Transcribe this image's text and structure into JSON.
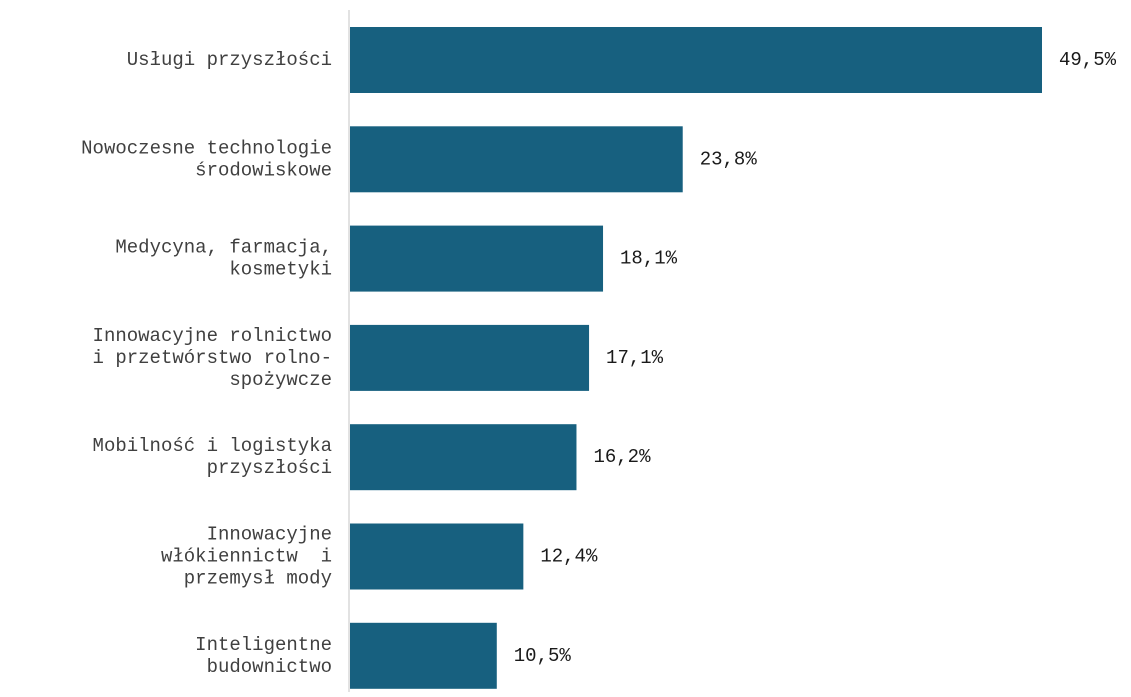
{
  "chart_data": {
    "type": "bar",
    "orientation": "horizontal",
    "categories": [
      "Usługi przyszłości",
      "Nowoczesne technologie środowiskowe",
      "Medycyna, farmacja, kosmetyki",
      "Innowacyjne rolnictwo i przetwórstwo rolno-spożywcze",
      "Mobilność i logistyka przyszłości",
      "Innowacyjne włókiennictw  i przemysł mody",
      "Inteligentne budownictwo"
    ],
    "category_lines": [
      [
        "Usługi przyszłości"
      ],
      [
        "Nowoczesne technologie",
        "środowiskowe"
      ],
      [
        "Medycyna, farmacja,",
        "kosmetyki"
      ],
      [
        "Innowacyjne rolnictwo",
        "i przetwórstwo rolno-",
        "spożywcze"
      ],
      [
        "Mobilność i logistyka",
        "przyszłości"
      ],
      [
        "Innowacyjne",
        "włókiennictw  i",
        "przemysł mody"
      ],
      [
        "Inteligentne",
        "budownictwo"
      ]
    ],
    "values": [
      49.5,
      23.8,
      18.1,
      17.1,
      16.2,
      12.4,
      10.5
    ],
    "value_labels": [
      "49,5%",
      "23,8%",
      "18,1%",
      "17,1%",
      "16,2%",
      "12,4%",
      "10,5%"
    ],
    "bar_color": "#17607F",
    "axis_color": "#D9D9D9",
    "xlim": [
      0,
      50
    ],
    "grid": false,
    "legend": "none",
    "title": "",
    "xlabel": "",
    "ylabel": ""
  }
}
